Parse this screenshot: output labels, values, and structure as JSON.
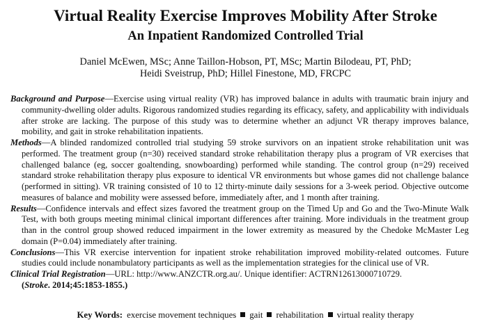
{
  "header": {
    "title": "Virtual Reality Exercise Improves Mobility After Stroke",
    "subtitle": "An Inpatient Randomized Controlled Trial",
    "authors": [
      "Daniel McEwen, MSc; Anne Taillon-Hobson, PT, MSc; Martin Bilodeau, PT, PhD;",
      "Heidi Sveistrup, PhD; Hillel Finestone, MD, FRCPC"
    ]
  },
  "abstract": {
    "sections": [
      {
        "label": "Background and Purpose",
        "text": "—Exercise using virtual reality (VR) has improved balance in adults with traumatic brain injury and community-dwelling older adults. Rigorous randomized studies regarding its efficacy, safety, and applicability with individuals after stroke are lacking. The purpose of this study was to determine whether an adjunct VR therapy improves balance, mobility, and gait in stroke rehabilitation inpatients."
      },
      {
        "label": "Methods",
        "text": "—A blinded randomized controlled trial studying 59 stroke survivors on an inpatient stroke rehabilitation unit was performed. The treatment group (n=30) received standard stroke rehabilitation therapy plus a program of VR exercises that challenged balance (eg, soccer goaltending, snowboarding) performed while standing. The control group (n=29) received standard stroke rehabilitation therapy plus exposure to identical VR environments but whose games did not challenge balance (performed in sitting). VR training consisted of 10 to 12 thirty-minute daily sessions for a 3-week period. Objective outcome measures of balance and mobility were assessed before, immediately after, and 1 month after training."
      },
      {
        "label": "Results",
        "text": "—Confidence intervals and effect sizes favored the treatment group on the Timed Up and Go and the Two-Minute Walk Test, with both groups meeting minimal clinical important differences after training. More individuals in the treatment group than in the control group showed reduced impairment in the lower extremity as measured by the Chedoke McMaster Leg domain (P=0.04) immediately after training."
      },
      {
        "label": "Conclusions",
        "text": "—This VR exercise intervention for inpatient stroke rehabilitation improved mobility-related outcomes. Future studies could include nonambulatory participants as well as the implementation strategies for the clinical use of VR."
      },
      {
        "label": "Clinical Trial Registration",
        "text": "—URL: http://www.ANZCTR.org.au/. Unique identifier: ACTRN12613000710729."
      }
    ],
    "citation": [
      "(",
      "Stroke",
      ". 2014;45:1853-1855.)"
    ]
  },
  "keywords": {
    "label": "Key Words:",
    "items": [
      "exercise movement techniques",
      "gait",
      "rehabilitation",
      "virtual reality therapy"
    ]
  }
}
